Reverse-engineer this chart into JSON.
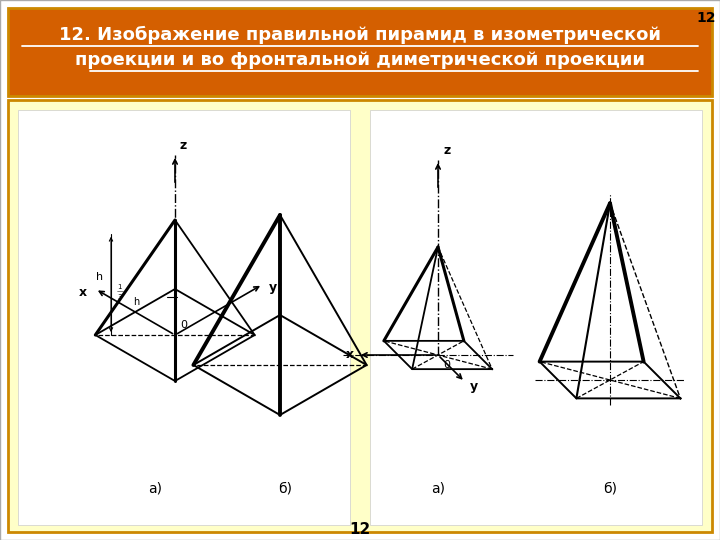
{
  "title_line1": "12. Изображение правильной пирамид в изометрической",
  "title_line2": "проекции и во фронтальной диметрической проекции",
  "slide_bg": "#ffffff",
  "title_bg": "#d45f00",
  "content_bg": "#ffffc8",
  "inner_bg": "#ffffff",
  "border_color": "#cc8800",
  "text_color_title": "#ffffff",
  "page_num": "12",
  "label_a": "а)",
  "label_b": "б)"
}
